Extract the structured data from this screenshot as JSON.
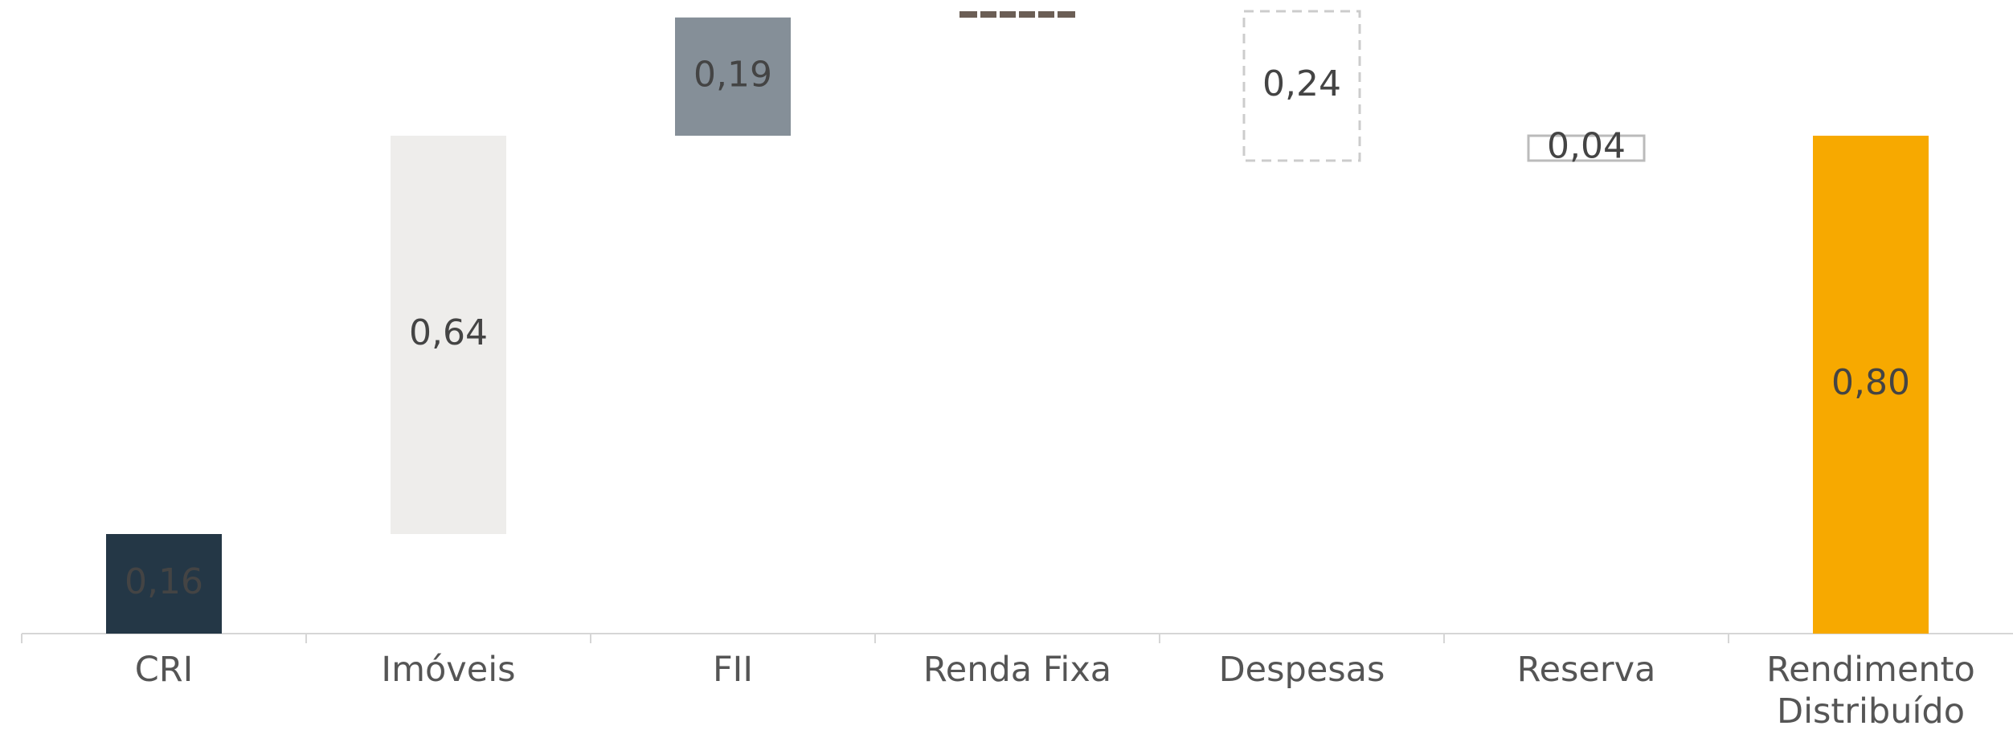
{
  "chart_data": {
    "type": "waterfall",
    "categories": [
      "CRI",
      "Imóveis",
      "FII",
      "Renda Fixa",
      "Despesas",
      "Reserva",
      "Rendimento Distribuído"
    ],
    "values": [
      0.16,
      0.64,
      0.19,
      0.01,
      -0.24,
      0.04,
      0.8
    ],
    "value_labels": [
      "0,16",
      "0,64",
      "0,19",
      null,
      "0,24",
      "0,04",
      "0,80"
    ],
    "colors": [
      "#243746",
      "#eeedeb",
      "#858f98",
      "#6b5e55",
      "#cccccc",
      "#bbbbbb",
      "#f7a900"
    ]
  }
}
